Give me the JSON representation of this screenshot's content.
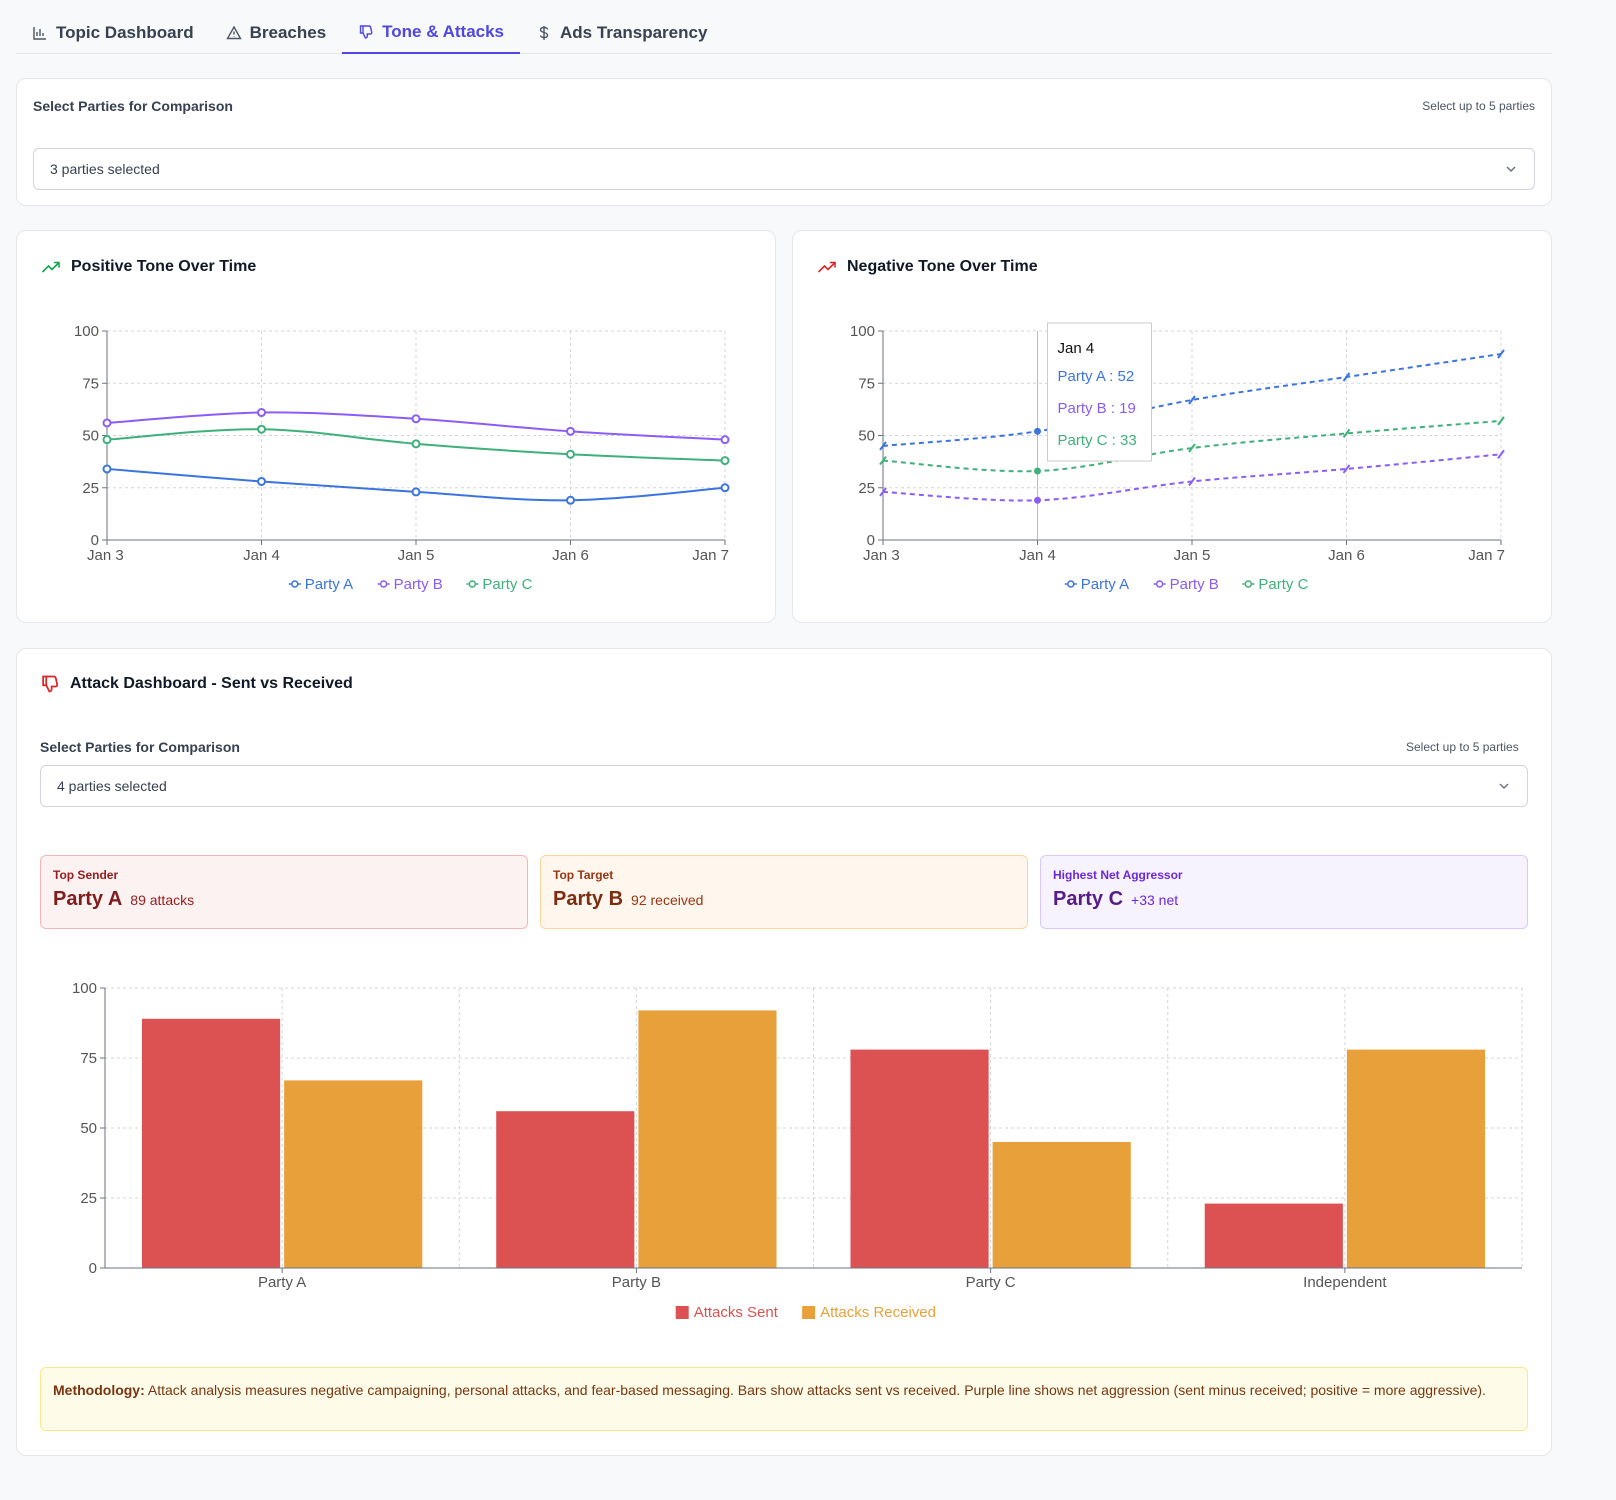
{
  "tabs": [
    {
      "label": "Topic Dashboard",
      "icon": "bar-chart-icon"
    },
    {
      "label": "Breaches",
      "icon": "warning-icon"
    },
    {
      "label": "Tone & Attacks",
      "icon": "thumbs-down-icon",
      "active": true
    },
    {
      "label": "Ads Transparency",
      "icon": "dollar-icon"
    }
  ],
  "party_select": {
    "label": "Select Parties for Comparison",
    "hint": "Select up to 5 parties",
    "value": "3 parties selected"
  },
  "positive_chart": {
    "title": "Positive Tone Over Time",
    "chart_data": {
      "type": "line",
      "x": [
        "Jan 3",
        "Jan 4",
        "Jan 5",
        "Jan 6",
        "Jan 7"
      ],
      "ylim": [
        0,
        100
      ],
      "yticks": [
        0,
        25,
        50,
        75,
        100
      ],
      "series": [
        {
          "name": "Party A",
          "color": "#3b74e0",
          "values": [
            34,
            28,
            23,
            19,
            25
          ]
        },
        {
          "name": "Party B",
          "color": "#8b5cf6",
          "values": [
            56,
            61,
            58,
            52,
            48
          ]
        },
        {
          "name": "Party C",
          "color": "#3fb07a",
          "values": [
            48,
            53,
            46,
            41,
            38
          ]
        }
      ]
    }
  },
  "negative_chart": {
    "title": "Negative Tone Over Time",
    "chart_data": {
      "type": "line",
      "x": [
        "Jan 3",
        "Jan 4",
        "Jan 5",
        "Jan 6",
        "Jan 7"
      ],
      "ylim": [
        0,
        100
      ],
      "yticks": [
        0,
        25,
        50,
        75,
        100
      ],
      "series": [
        {
          "name": "Party A",
          "color": "#3b74e0",
          "values": [
            45,
            52,
            67,
            78,
            89
          ]
        },
        {
          "name": "Party B",
          "color": "#8b5cf6",
          "values": [
            23,
            19,
            28,
            34,
            41
          ]
        },
        {
          "name": "Party C",
          "color": "#3fb07a",
          "values": [
            38,
            33,
            44,
            51,
            57
          ]
        }
      ]
    },
    "tooltip": {
      "title": "Jan 4",
      "rows": [
        "Party A : 52",
        "Party B : 19",
        "Party C : 33"
      ]
    }
  },
  "attack": {
    "title": "Attack Dashboard - Sent vs Received",
    "select": {
      "label": "Select Parties for Comparison",
      "hint": "Select up to 5 parties",
      "value": "4 parties selected"
    },
    "stats": [
      {
        "label": "Top Sender",
        "name": "Party A",
        "value": "89 attacks"
      },
      {
        "label": "Top Target",
        "name": "Party B",
        "value": "92 received"
      },
      {
        "label": "Highest Net Aggressor",
        "name": "Party C",
        "value": "+33 net"
      }
    ],
    "chart_data": {
      "type": "bar",
      "categories": [
        "Party A",
        "Party B",
        "Party C",
        "Independent"
      ],
      "ylim": [
        0,
        100
      ],
      "yticks": [
        0,
        25,
        50,
        75,
        100
      ],
      "series": [
        {
          "name": "Attacks Sent",
          "color": "#dc5252",
          "values": [
            89,
            56,
            78,
            23
          ]
        },
        {
          "name": "Attacks Received",
          "color": "#e8a13a",
          "values": [
            67,
            92,
            45,
            78
          ]
        }
      ]
    },
    "methodology_label": "Methodology:",
    "methodology_text": "Attack analysis measures negative campaigning, personal attacks, and fear-based messaging. Bars show attacks sent vs received. Purple line shows net aggression (sent minus received; positive = more aggressive)."
  }
}
